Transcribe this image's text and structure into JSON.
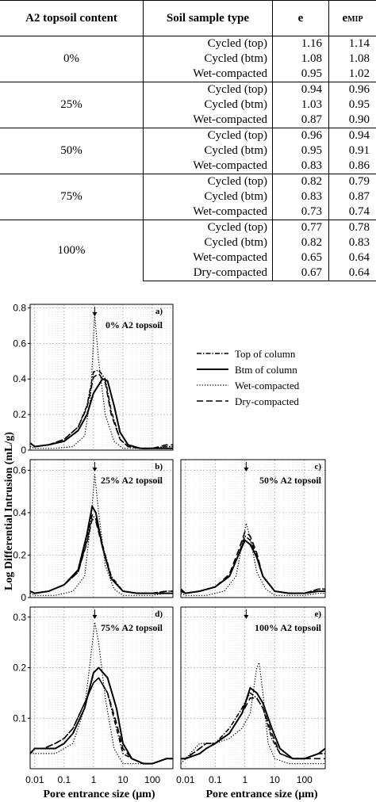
{
  "table": {
    "headers": {
      "content": "A2 topsoil content",
      "type": "Soil sample type",
      "e": "e",
      "emip": "e",
      "emip_sub": "MIP"
    },
    "groups": [
      {
        "label": "0%",
        "rows": [
          [
            "Cycled (top)",
            "1.16",
            "1.14"
          ],
          [
            "Cycled (btm)",
            "1.08",
            "1.08"
          ],
          [
            "Wet-compacted",
            "0.95",
            "1.02"
          ]
        ]
      },
      {
        "label": "25%",
        "rows": [
          [
            "Cycled (top)",
            "0.94",
            "0.96"
          ],
          [
            "Cycled (btm)",
            "1.03",
            "0.95"
          ],
          [
            "Wet-compacted",
            "0.87",
            "0.90"
          ]
        ]
      },
      {
        "label": "50%",
        "rows": [
          [
            "Cycled (top)",
            "0.96",
            "0.94"
          ],
          [
            "Cycled (btm)",
            "0.95",
            "0.91"
          ],
          [
            "Wet-compacted",
            "0.83",
            "0.86"
          ]
        ]
      },
      {
        "label": "75%",
        "rows": [
          [
            "Cycled (top)",
            "0.82",
            "0.79"
          ],
          [
            "Cycled (btm)",
            "0.83",
            "0.87"
          ],
          [
            "Wet-compacted",
            "0.73",
            "0.74"
          ]
        ]
      },
      {
        "label": "100%",
        "rows": [
          [
            "Cycled (top)",
            "0.77",
            "0.78"
          ],
          [
            "Cycled (btm)",
            "0.82",
            "0.83"
          ],
          [
            "Wet-compacted",
            "0.65",
            "0.64"
          ],
          [
            "Dry-compacted",
            "0.67",
            "0.64"
          ]
        ]
      }
    ]
  },
  "figure": {
    "ylabel": "Log Differential Intrusion (mL/g)",
    "xlabel": "Pore entrance size (μm)",
    "x_ticks": [
      "0.01",
      "0.1",
      "1",
      "10",
      "100"
    ],
    "legend": [
      "Top of column",
      "Btm of column",
      "Wet-compacted",
      "Dry-compacted"
    ],
    "panels": [
      {
        "letter": "a)",
        "title": "0% A2 topsoil",
        "y_ticks": [
          "0",
          "0.2",
          "0.4",
          "0.6",
          "0.8"
        ]
      },
      {
        "letter": "b)",
        "title": "25% A2 topsoil",
        "y_ticks": [
          "0",
          "0.2",
          "0.4",
          "0.6"
        ]
      },
      {
        "letter": "c)",
        "title": "50% A2 topsoil",
        "y_ticks": []
      },
      {
        "letter": "d)",
        "title": "75% A2 topsoil",
        "y_ticks": [
          "0.1",
          "0.2",
          "0.3"
        ]
      },
      {
        "letter": "e)",
        "title": "100% A2 topsoil",
        "y_ticks": []
      }
    ]
  },
  "chart_data": [
    {
      "type": "line",
      "title": "0% A2 topsoil",
      "x_scale": "log",
      "xlim": [
        0.007,
        500
      ],
      "ylim": [
        0,
        0.82
      ],
      "series": [
        {
          "name": "Top of column",
          "x": [
            0.007,
            0.01,
            0.03,
            0.1,
            0.3,
            0.6,
            1,
            1.5,
            2.5,
            4,
            8,
            15,
            40,
            100,
            300,
            500
          ],
          "y": [
            0.04,
            0.02,
            0.03,
            0.06,
            0.13,
            0.25,
            0.44,
            0.45,
            0.4,
            0.22,
            0.06,
            0.02,
            0.01,
            0.01,
            0.02,
            0.02
          ]
        },
        {
          "name": "Btm of column",
          "x": [
            0.007,
            0.01,
            0.03,
            0.1,
            0.3,
            0.6,
            1,
            2,
            3,
            5,
            8,
            15,
            40,
            100,
            300,
            500
          ],
          "y": [
            0.04,
            0.02,
            0.03,
            0.05,
            0.11,
            0.2,
            0.32,
            0.4,
            0.39,
            0.25,
            0.1,
            0.03,
            0.01,
            0.01,
            0.01,
            0.01
          ]
        },
        {
          "name": "Wet-compacted",
          "x": [
            0.007,
            0.01,
            0.05,
            0.2,
            0.5,
            0.8,
            1.1,
            1.5,
            2.5,
            5,
            10,
            30,
            100,
            300,
            500
          ],
          "y": [
            0.02,
            0.01,
            0.01,
            0.02,
            0.08,
            0.3,
            0.76,
            0.5,
            0.2,
            0.05,
            0.01,
            0.01,
            0.01,
            0.02,
            0.02
          ]
        },
        {
          "name": "Dry-compacted",
          "x": [
            0.007,
            0.01,
            0.03,
            0.1,
            0.3,
            0.6,
            1,
            1.5,
            2.5,
            4,
            8,
            15,
            40,
            100,
            300,
            500
          ],
          "y": [
            0.04,
            0.02,
            0.03,
            0.06,
            0.13,
            0.24,
            0.41,
            0.43,
            0.38,
            0.2,
            0.06,
            0.02,
            0.01,
            0.01,
            0.03,
            0.03
          ]
        }
      ]
    },
    {
      "type": "line",
      "title": "25% A2 topsoil",
      "x_scale": "log",
      "xlim": [
        0.007,
        500
      ],
      "ylim": [
        0,
        0.65
      ],
      "series": [
        {
          "name": "Top of column",
          "x": [
            0.007,
            0.01,
            0.03,
            0.1,
            0.3,
            0.6,
            0.9,
            1.2,
            2,
            4,
            10,
            30,
            100,
            300,
            500
          ],
          "y": [
            0.03,
            0.02,
            0.03,
            0.06,
            0.12,
            0.27,
            0.39,
            0.37,
            0.25,
            0.1,
            0.03,
            0.02,
            0.02,
            0.03,
            0.03
          ]
        },
        {
          "name": "Btm of column",
          "x": [
            0.007,
            0.01,
            0.03,
            0.1,
            0.3,
            0.6,
            0.9,
            1.2,
            2,
            4,
            10,
            30,
            100,
            300,
            500
          ],
          "y": [
            0.03,
            0.02,
            0.03,
            0.06,
            0.13,
            0.3,
            0.43,
            0.4,
            0.24,
            0.09,
            0.03,
            0.02,
            0.02,
            0.02,
            0.02
          ]
        },
        {
          "name": "Wet-compacted",
          "x": [
            0.007,
            0.01,
            0.05,
            0.2,
            0.5,
            0.8,
            1.1,
            1.5,
            2.5,
            5,
            10,
            30,
            100,
            300,
            500
          ],
          "y": [
            0.02,
            0.01,
            0.01,
            0.03,
            0.1,
            0.35,
            0.58,
            0.4,
            0.15,
            0.04,
            0.01,
            0.01,
            0.01,
            0.02,
            0.02
          ]
        },
        {
          "name": "Dry-compacted",
          "x": [
            0.007,
            0.01,
            0.03,
            0.1,
            0.3,
            0.6,
            0.9,
            1.2,
            2,
            4,
            10,
            30,
            100,
            300,
            500
          ],
          "y": [
            0.03,
            0.02,
            0.03,
            0.06,
            0.12,
            0.26,
            0.37,
            0.36,
            0.24,
            0.09,
            0.03,
            0.02,
            0.02,
            0.03,
            0.03
          ]
        }
      ]
    },
    {
      "type": "line",
      "title": "50% A2 topsoil",
      "x_scale": "log",
      "xlim": [
        0.007,
        500
      ],
      "ylim": [
        0,
        0.65
      ],
      "series": [
        {
          "name": "Top of column",
          "x": [
            0.007,
            0.01,
            0.03,
            0.1,
            0.3,
            0.6,
            1,
            1.5,
            2.5,
            4,
            10,
            30,
            100,
            300,
            500
          ],
          "y": [
            0.04,
            0.02,
            0.03,
            0.05,
            0.1,
            0.2,
            0.29,
            0.27,
            0.2,
            0.1,
            0.03,
            0.02,
            0.02,
            0.04,
            0.04
          ]
        },
        {
          "name": "Btm of column",
          "x": [
            0.007,
            0.01,
            0.03,
            0.1,
            0.3,
            0.6,
            1,
            1.5,
            2.5,
            4,
            10,
            30,
            100,
            300,
            500
          ],
          "y": [
            0.03,
            0.02,
            0.03,
            0.05,
            0.1,
            0.2,
            0.27,
            0.25,
            0.19,
            0.1,
            0.03,
            0.02,
            0.02,
            0.03,
            0.03
          ]
        },
        {
          "name": "Wet-compacted",
          "x": [
            0.007,
            0.01,
            0.05,
            0.2,
            0.5,
            0.8,
            1.1,
            1.5,
            2.5,
            5,
            10,
            30,
            100,
            300,
            500
          ],
          "y": [
            0.02,
            0.01,
            0.01,
            0.03,
            0.1,
            0.25,
            0.35,
            0.28,
            0.12,
            0.04,
            0.01,
            0.01,
            0.01,
            0.02,
            0.02
          ]
        },
        {
          "name": "Dry-compacted",
          "x": [
            0.007,
            0.01,
            0.03,
            0.1,
            0.3,
            0.6,
            1,
            1.5,
            2.5,
            4,
            10,
            30,
            100,
            300,
            500
          ],
          "y": [
            0.04,
            0.02,
            0.03,
            0.05,
            0.11,
            0.22,
            0.31,
            0.29,
            0.21,
            0.1,
            0.03,
            0.02,
            0.02,
            0.04,
            0.04
          ]
        }
      ]
    },
    {
      "type": "line",
      "title": "75% A2 topsoil",
      "x_scale": "log",
      "xlim": [
        0.007,
        500
      ],
      "ylim": [
        0,
        0.32
      ],
      "series": [
        {
          "name": "Top of column",
          "x": [
            0.007,
            0.01,
            0.02,
            0.05,
            0.1,
            0.2,
            0.5,
            1,
            1.5,
            3,
            6,
            10,
            20,
            50,
            100,
            300,
            500
          ],
          "y": [
            0.03,
            0.04,
            0.04,
            0.05,
            0.06,
            0.08,
            0.13,
            0.17,
            0.18,
            0.15,
            0.08,
            0.03,
            0.02,
            0.01,
            0.01,
            0.02,
            0.02
          ]
        },
        {
          "name": "Btm of column",
          "x": [
            0.007,
            0.01,
            0.02,
            0.05,
            0.1,
            0.2,
            0.5,
            1,
            1.5,
            3,
            6,
            10,
            20,
            50,
            100,
            300,
            500
          ],
          "y": [
            0.03,
            0.04,
            0.04,
            0.04,
            0.05,
            0.07,
            0.12,
            0.19,
            0.2,
            0.18,
            0.12,
            0.05,
            0.02,
            0.01,
            0.01,
            0.02,
            0.02
          ]
        },
        {
          "name": "Wet-compacted",
          "x": [
            0.007,
            0.01,
            0.05,
            0.2,
            0.5,
            0.8,
            1.1,
            1.5,
            2.5,
            5,
            10,
            30,
            100,
            300,
            500
          ],
          "y": [
            0.03,
            0.03,
            0.03,
            0.05,
            0.12,
            0.22,
            0.29,
            0.25,
            0.14,
            0.04,
            0.01,
            0.01,
            0.01,
            0.02,
            0.02
          ]
        },
        {
          "name": "Dry-compacted",
          "x": [
            0.007,
            0.01,
            0.02,
            0.05,
            0.1,
            0.2,
            0.5,
            1,
            1.5,
            3,
            6,
            10,
            20,
            50,
            100,
            300,
            500
          ],
          "y": [
            0.03,
            0.04,
            0.04,
            0.05,
            0.06,
            0.08,
            0.13,
            0.17,
            0.18,
            0.15,
            0.09,
            0.04,
            0.02,
            0.01,
            0.01,
            0.02,
            0.02
          ]
        }
      ]
    },
    {
      "type": "line",
      "title": "100% A2 topsoil",
      "x_scale": "log",
      "xlim": [
        0.007,
        500
      ],
      "ylim": [
        0,
        0.32
      ],
      "series": [
        {
          "name": "Top of column",
          "x": [
            0.007,
            0.01,
            0.03,
            0.05,
            0.1,
            0.3,
            0.8,
            1.5,
            2.5,
            4,
            8,
            15,
            40,
            100,
            300,
            500
          ],
          "y": [
            0.02,
            0.02,
            0.04,
            0.05,
            0.05,
            0.08,
            0.12,
            0.15,
            0.14,
            0.12,
            0.06,
            0.03,
            0.02,
            0.02,
            0.03,
            0.03
          ]
        },
        {
          "name": "Btm of column",
          "x": [
            0.007,
            0.01,
            0.03,
            0.05,
            0.1,
            0.3,
            0.8,
            1.5,
            2.5,
            4,
            8,
            15,
            40,
            100,
            300,
            500
          ],
          "y": [
            0.02,
            0.02,
            0.03,
            0.04,
            0.05,
            0.07,
            0.11,
            0.16,
            0.15,
            0.13,
            0.08,
            0.04,
            0.02,
            0.02,
            0.03,
            0.04
          ]
        },
        {
          "name": "Wet-compacted",
          "x": [
            0.007,
            0.01,
            0.03,
            0.1,
            0.3,
            0.8,
            1.5,
            2.5,
            3,
            4,
            6,
            10,
            30,
            100,
            300,
            500
          ],
          "y": [
            0.01,
            0.02,
            0.05,
            0.05,
            0.06,
            0.08,
            0.11,
            0.2,
            0.21,
            0.15,
            0.05,
            0.02,
            0.01,
            0.01,
            0.01,
            0.01
          ]
        },
        {
          "name": "Dry-compacted",
          "x": [
            0.007,
            0.01,
            0.03,
            0.05,
            0.1,
            0.3,
            0.8,
            1.5,
            2.5,
            4,
            8,
            15,
            40,
            100,
            300,
            500
          ],
          "y": [
            0.02,
            0.02,
            0.04,
            0.05,
            0.05,
            0.07,
            0.11,
            0.14,
            0.14,
            0.12,
            0.07,
            0.03,
            0.02,
            0.02,
            0.02,
            0.02
          ]
        }
      ]
    }
  ]
}
